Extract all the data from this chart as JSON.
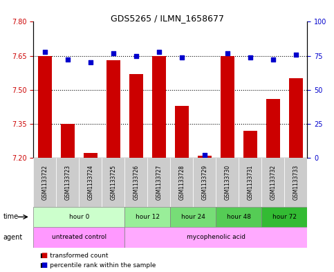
{
  "title": "GDS5265 / ILMN_1658677",
  "samples": [
    "GSM1133722",
    "GSM1133723",
    "GSM1133724",
    "GSM1133725",
    "GSM1133726",
    "GSM1133727",
    "GSM1133728",
    "GSM1133729",
    "GSM1133730",
    "GSM1133731",
    "GSM1133732",
    "GSM1133733"
  ],
  "bar_values": [
    7.65,
    7.35,
    7.22,
    7.63,
    7.57,
    7.65,
    7.43,
    7.21,
    7.65,
    7.32,
    7.46,
    7.55
  ],
  "percentile_values": [
    78,
    72,
    70,
    77,
    75,
    78,
    74,
    2,
    77,
    74,
    72,
    76
  ],
  "ylim_left": [
    7.2,
    7.8
  ],
  "ylim_right": [
    0,
    100
  ],
  "yticks_left": [
    7.2,
    7.35,
    7.5,
    7.65,
    7.8
  ],
  "yticks_right": [
    0,
    25,
    50,
    75,
    100
  ],
  "bar_color": "#cc0000",
  "dot_color": "#0000cc",
  "bar_bottom": 7.2,
  "time_groups": [
    {
      "label": "hour 0",
      "start": 0,
      "end": 4,
      "color": "#ccffcc"
    },
    {
      "label": "hour 12",
      "start": 4,
      "end": 6,
      "color": "#99ee99"
    },
    {
      "label": "hour 24",
      "start": 6,
      "end": 8,
      "color": "#77dd77"
    },
    {
      "label": "hour 48",
      "start": 8,
      "end": 10,
      "color": "#55cc55"
    },
    {
      "label": "hour 72",
      "start": 10,
      "end": 12,
      "color": "#33bb33"
    }
  ],
  "agent_groups": [
    {
      "label": "untreated control",
      "start": 0,
      "end": 4,
      "color": "#ff99ff"
    },
    {
      "label": "mycophenolic acid",
      "start": 4,
      "end": 12,
      "color": "#ffaaff"
    }
  ],
  "legend_bar_label": "transformed count",
  "legend_dot_label": "percentile rank within the sample",
  "dotted_line_values": [
    7.35,
    7.5,
    7.65
  ],
  "grid_color": "#888888"
}
